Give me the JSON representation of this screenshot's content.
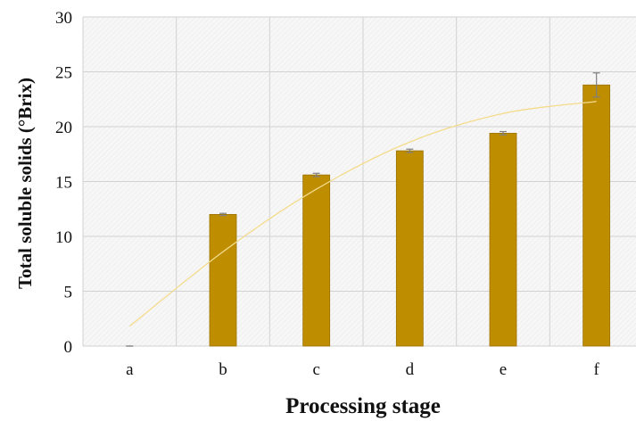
{
  "chart_data": {
    "type": "bar",
    "categories": [
      "a",
      "b",
      "c",
      "d",
      "e",
      "f"
    ],
    "values": [
      0,
      12.0,
      15.6,
      17.8,
      19.4,
      23.8
    ],
    "errors": [
      0,
      0.1,
      0.15,
      0.15,
      0.15,
      1.1
    ],
    "trendline": [
      1.8,
      8.6,
      14.3,
      18.6,
      21.2,
      22.3
    ],
    "title": "",
    "xlabel": "Processing stage",
    "ylabel": "Total soluble solids (°Brix)",
    "ylim": [
      0,
      30
    ],
    "yticks": [
      0,
      5,
      10,
      15,
      20,
      25,
      30
    ],
    "grid": true,
    "legend": "none",
    "colors": {
      "bar": "#BE8D00",
      "bar_edge": "#9A7200",
      "trendline": "#F4DC8C",
      "error_bar": "#7F7F7F",
      "grid": "#D2D2D2",
      "plot_background": "#F6F6F6"
    }
  }
}
